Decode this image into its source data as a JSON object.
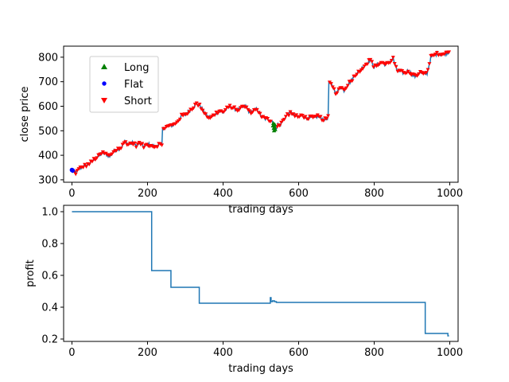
{
  "chart_data": [
    {
      "type": "line",
      "xlabel": "trading days",
      "ylabel": "close price",
      "xlim": [
        -22,
        1022
      ],
      "ylim": [
        290,
        845
      ],
      "xticks": [
        0,
        200,
        400,
        600,
        800,
        1000
      ],
      "yticks": [
        300,
        400,
        500,
        600,
        700,
        800
      ],
      "grid": false,
      "legend_position": "top-left",
      "legend": [
        {
          "label": "Long",
          "color": "#008000",
          "marker": "triangle-up"
        },
        {
          "label": "Flat",
          "color": "#0000ff",
          "marker": "circle"
        },
        {
          "label": "Short",
          "color": "#ff0000",
          "marker": "triangle-down"
        }
      ],
      "line_color": "#1f77b4",
      "series": [
        {
          "x": [
            0,
            5,
            10,
            20,
            30,
            40,
            50,
            60,
            70,
            80,
            90,
            100,
            110,
            120,
            130,
            140,
            150,
            160,
            170,
            180,
            190,
            200,
            210,
            220,
            230,
            238,
            240,
            250,
            260,
            270,
            280,
            290,
            300,
            310,
            320,
            330,
            340,
            350,
            360,
            370,
            380,
            390,
            400,
            410,
            420,
            430,
            440,
            450,
            460,
            470,
            480,
            490,
            500,
            510,
            520,
            530,
            535,
            540,
            545,
            550,
            560,
            570,
            580,
            590,
            600,
            610,
            620,
            630,
            640,
            650,
            660,
            670,
            678,
            680,
            690,
            700,
            710,
            720,
            730,
            740,
            750,
            760,
            770,
            780,
            790,
            800,
            810,
            820,
            830,
            840,
            850,
            860,
            870,
            880,
            890,
            900,
            910,
            920,
            930,
            940,
            950,
            960,
            970,
            980,
            990,
            1000
          ],
          "y": [
            335,
            330,
            328,
            345,
            355,
            360,
            370,
            385,
            395,
            410,
            405,
            395,
            415,
            425,
            430,
            455,
            445,
            450,
            440,
            450,
            435,
            445,
            440,
            435,
            445,
            440,
            510,
            515,
            520,
            525,
            540,
            560,
            565,
            580,
            595,
            610,
            600,
            575,
            555,
            555,
            570,
            580,
            575,
            590,
            600,
            590,
            585,
            595,
            600,
            575,
            580,
            590,
            560,
            550,
            545,
            540,
            515,
            510,
            525,
            520,
            545,
            565,
            575,
            560,
            555,
            565,
            550,
            555,
            550,
            560,
            550,
            545,
            555,
            700,
            680,
            650,
            680,
            665,
            690,
            705,
            730,
            740,
            760,
            775,
            790,
            760,
            770,
            780,
            770,
            780,
            795,
            745,
            740,
            735,
            745,
            730,
            720,
            740,
            730,
            735,
            800,
            810,
            815,
            810,
            815,
            825
          ]
        }
      ],
      "signals": {
        "long_x": [
          532,
          533,
          534,
          535,
          536,
          537,
          538
        ],
        "long_y": [
          520,
          530,
          510,
          500,
          515,
          525,
          505
        ],
        "flat_x": [
          0,
          2
        ],
        "flat_y": [
          340,
          338
        ]
      }
    },
    {
      "type": "line",
      "xlabel": "trading days",
      "ylabel": "profit",
      "xlim": [
        -22,
        1022
      ],
      "ylim": [
        0.185,
        1.04
      ],
      "xticks": [
        0,
        200,
        400,
        600,
        800,
        1000
      ],
      "yticks": [
        0.2,
        0.4,
        0.6,
        0.8,
        1.0
      ],
      "grid": false,
      "line_color": "#1f77b4",
      "series": [
        {
          "x": [
            0,
            211,
            211,
            262,
            262,
            337,
            337,
            525,
            525,
            527,
            527,
            531,
            531,
            536,
            536,
            541,
            541,
            550,
            550,
            935,
            935,
            995,
            995,
            998
          ],
          "y": [
            1.0,
            1.0,
            0.63,
            0.63,
            0.525,
            0.525,
            0.425,
            0.425,
            0.46,
            0.46,
            0.435,
            0.435,
            0.44,
            0.44,
            0.435,
            0.435,
            0.43,
            0.43,
            0.43,
            0.43,
            0.235,
            0.235,
            0.22,
            0.22
          ]
        }
      ]
    }
  ]
}
